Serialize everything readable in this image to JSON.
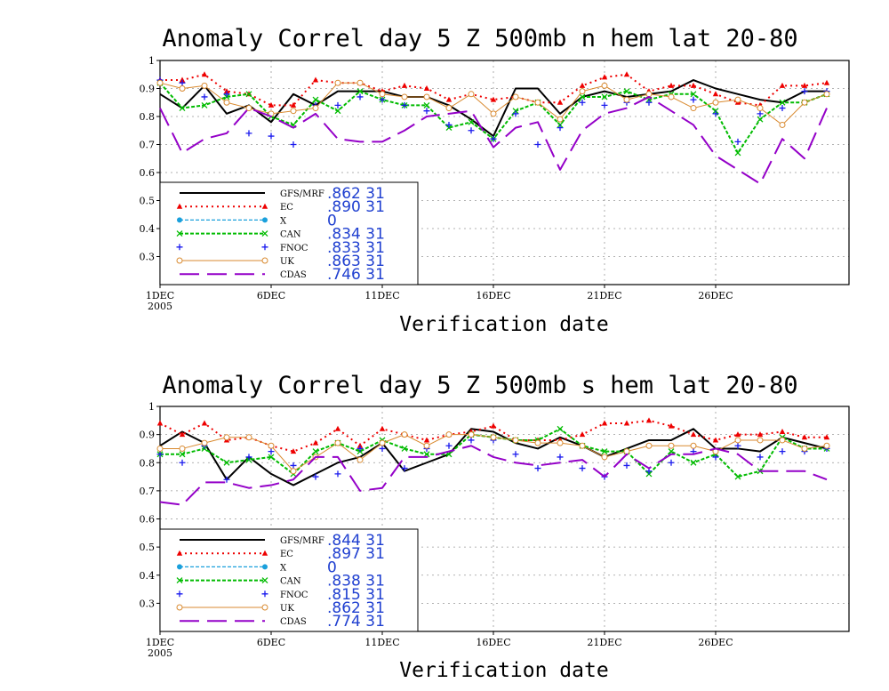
{
  "chart_data": [
    {
      "type": "line",
      "title": "Anomaly Correl  day 5  Z 500mb  n hem  lat 20-80",
      "xlabel": "Verification date",
      "ylabel": "",
      "xlim": [
        1,
        31
      ],
      "ylim": [
        0.2,
        1.0
      ],
      "yticks": [
        "0.3",
        "0.4",
        "0.5",
        "0.6",
        "0.7",
        "0.8",
        "0.9",
        "1"
      ],
      "xticks": [
        {
          "day": 1,
          "label": "1DEC",
          "sub": "2005"
        },
        {
          "day": 6,
          "label": "6DEC",
          "sub": ""
        },
        {
          "day": 11,
          "label": "11DEC",
          "sub": ""
        },
        {
          "day": 16,
          "label": "16DEC",
          "sub": ""
        },
        {
          "day": 21,
          "label": "21DEC",
          "sub": ""
        },
        {
          "day": 26,
          "label": "26DEC",
          "sub": ""
        }
      ],
      "grid": true,
      "legend_position": "bottom-left",
      "series": [
        {
          "name": "GFS/MRF",
          "score": ".862  31",
          "color": "#000000",
          "values": [
            0.88,
            0.83,
            0.91,
            0.81,
            0.84,
            0.78,
            0.88,
            0.84,
            0.89,
            0.89,
            0.89,
            0.87,
            0.87,
            0.84,
            0.79,
            0.73,
            0.9,
            0.9,
            0.81,
            0.87,
            0.89,
            0.87,
            0.88,
            0.89,
            0.93,
            0.9,
            0.88,
            0.86,
            0.85,
            0.89,
            0.89
          ]
        },
        {
          "name": "EC",
          "score": ".890  31",
          "color": "#ee0000",
          "values": [
            0.93,
            0.93,
            0.95,
            0.89,
            0.88,
            0.84,
            0.84,
            0.93,
            0.92,
            0.92,
            0.89,
            0.91,
            0.9,
            0.86,
            0.88,
            0.86,
            0.87,
            0.85,
            0.85,
            0.91,
            0.94,
            0.95,
            0.89,
            0.91,
            0.91,
            0.88,
            0.85,
            0.84,
            0.91,
            0.91,
            0.92
          ]
        },
        {
          "name": "X",
          "score": "0",
          "color": "#1aa0dc",
          "values": []
        },
        {
          "name": "CAN",
          "score": ".834  31",
          "color": "#00bb00",
          "values": [
            0.92,
            0.83,
            0.84,
            0.87,
            0.88,
            0.8,
            0.77,
            0.86,
            0.82,
            0.89,
            0.86,
            0.84,
            0.84,
            0.76,
            0.78,
            0.72,
            0.82,
            0.85,
            0.77,
            0.87,
            0.87,
            0.89,
            0.86,
            0.88,
            0.88,
            0.82,
            0.67,
            0.79,
            0.85,
            0.85,
            0.88
          ]
        },
        {
          "name": "FNOC",
          "score": ".833  31",
          "color": "#1a1aee",
          "values": [
            0.93,
            0.92,
            0.87,
            0.88,
            0.74,
            0.73,
            0.7,
            0.84,
            0.84,
            0.87,
            0.86,
            0.84,
            0.82,
            0.77,
            0.75,
            0.72,
            0.81,
            0.7,
            0.76,
            0.85,
            0.84,
            0.85,
            0.85,
            0.87,
            0.86,
            0.81,
            0.71,
            0.81,
            0.83,
            0.89,
            0.89
          ]
        },
        {
          "name": "UK",
          "score": ".863  31",
          "color": "#d98a30",
          "values": [
            0.92,
            0.9,
            0.91,
            0.85,
            0.83,
            0.81,
            0.82,
            0.83,
            0.92,
            0.92,
            0.88,
            0.87,
            0.87,
            0.83,
            0.88,
            0.81,
            0.87,
            0.85,
            0.79,
            0.89,
            0.91,
            0.86,
            0.88,
            0.87,
            0.83,
            0.85,
            0.86,
            0.83,
            0.77,
            0.85,
            0.88
          ]
        },
        {
          "name": "CDAS",
          "score": ".746  31",
          "color": "#9400c8",
          "values": [
            0.83,
            0.67,
            0.72,
            0.74,
            0.83,
            0.8,
            0.76,
            0.81,
            0.72,
            0.71,
            0.71,
            0.75,
            0.8,
            0.81,
            0.82,
            0.69,
            0.76,
            0.78,
            0.61,
            0.75,
            0.81,
            0.83,
            0.87,
            0.82,
            0.77,
            0.66,
            0.61,
            0.56,
            0.72,
            0.65,
            0.83
          ]
        }
      ]
    },
    {
      "type": "line",
      "title": "Anomaly Correl  day 5  Z 500mb  s hem  lat 20-80",
      "xlabel": "Verification date",
      "ylabel": "",
      "xlim": [
        1,
        31
      ],
      "ylim": [
        0.2,
        1.0
      ],
      "yticks": [
        "0.3",
        "0.4",
        "0.5",
        "0.6",
        "0.7",
        "0.8",
        "0.9",
        "1"
      ],
      "xticks": [
        {
          "day": 1,
          "label": "1DEC",
          "sub": "2005"
        },
        {
          "day": 6,
          "label": "6DEC",
          "sub": ""
        },
        {
          "day": 11,
          "label": "11DEC",
          "sub": ""
        },
        {
          "day": 16,
          "label": "16DEC",
          "sub": ""
        },
        {
          "day": 21,
          "label": "21DEC",
          "sub": ""
        },
        {
          "day": 26,
          "label": "26DEC",
          "sub": ""
        }
      ],
      "grid": true,
      "legend_position": "bottom-left",
      "series": [
        {
          "name": "GFS/MRF",
          "score": ".844  31",
          "color": "#000000",
          "values": [
            0.86,
            0.91,
            0.87,
            0.74,
            0.82,
            0.76,
            0.72,
            0.76,
            0.8,
            0.82,
            0.87,
            0.77,
            0.8,
            0.83,
            0.92,
            0.91,
            0.87,
            0.85,
            0.89,
            0.86,
            0.82,
            0.85,
            0.88,
            0.88,
            0.92,
            0.85,
            0.85,
            0.84,
            0.89,
            0.87,
            0.85
          ]
        },
        {
          "name": "EC",
          "score": ".897  31",
          "color": "#ee0000",
          "values": [
            0.94,
            0.9,
            0.94,
            0.88,
            0.89,
            0.86,
            0.84,
            0.87,
            0.92,
            0.86,
            0.92,
            0.9,
            0.88,
            0.9,
            0.91,
            0.93,
            0.88,
            0.88,
            0.88,
            0.9,
            0.94,
            0.94,
            0.95,
            0.93,
            0.9,
            0.88,
            0.9,
            0.9,
            0.91,
            0.89,
            0.89
          ]
        },
        {
          "name": "X",
          "score": "0",
          "color": "#1aa0dc",
          "values": []
        },
        {
          "name": "CAN",
          "score": ".838  31",
          "color": "#00bb00",
          "values": [
            0.83,
            0.83,
            0.85,
            0.8,
            0.81,
            0.82,
            0.76,
            0.84,
            0.87,
            0.84,
            0.88,
            0.85,
            0.83,
            0.83,
            0.9,
            0.89,
            0.88,
            0.88,
            0.92,
            0.86,
            0.84,
            0.84,
            0.76,
            0.84,
            0.8,
            0.83,
            0.75,
            0.77,
            0.89,
            0.85,
            0.85
          ]
        },
        {
          "name": "FNOC",
          "score": ".815  31",
          "color": "#1a1aee",
          "values": [
            0.83,
            0.8,
            0.86,
            0.74,
            0.82,
            0.84,
            0.79,
            0.75,
            0.76,
            0.85,
            0.85,
            0.78,
            0.85,
            0.86,
            0.88,
            0.88,
            0.83,
            0.78,
            0.82,
            0.78,
            0.75,
            0.79,
            0.77,
            0.8,
            0.84,
            0.82,
            0.86,
            0.82,
            0.84,
            0.84,
            0.85
          ]
        },
        {
          "name": "UK",
          "score": ".862  31",
          "color": "#d98a30",
          "values": [
            0.85,
            0.85,
            0.87,
            0.89,
            0.89,
            0.86,
            0.77,
            0.82,
            0.87,
            0.81,
            0.87,
            0.9,
            0.86,
            0.9,
            0.9,
            0.89,
            0.88,
            0.87,
            0.87,
            0.86,
            0.82,
            0.84,
            0.86,
            0.86,
            0.86,
            0.84,
            0.88,
            0.88,
            0.88,
            0.85,
            0.86
          ]
        },
        {
          "name": "CDAS",
          "score": ".774  31",
          "color": "#9400c8",
          "values": [
            0.66,
            0.65,
            0.73,
            0.73,
            0.71,
            0.72,
            0.74,
            0.82,
            0.82,
            0.7,
            0.71,
            0.82,
            0.82,
            0.84,
            0.86,
            0.82,
            0.8,
            0.79,
            0.8,
            0.81,
            0.75,
            0.83,
            0.78,
            0.83,
            0.83,
            0.85,
            0.83,
            0.77,
            0.77,
            0.77,
            0.74
          ]
        }
      ]
    }
  ]
}
